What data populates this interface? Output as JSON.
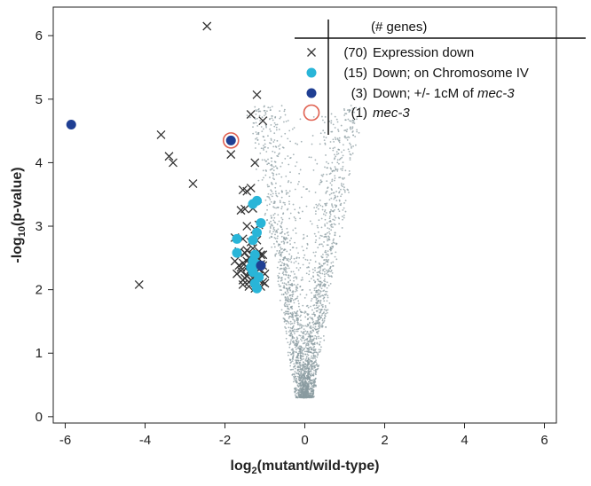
{
  "chart_data": {
    "type": "scatter",
    "xlabel": {
      "pre": "log",
      "sub": "2",
      "post": "(mutant/wild-type)"
    },
    "ylabel": {
      "pre": "-log",
      "sub": "10",
      "post": "(p-value)"
    },
    "xlim": [
      -6.3,
      6.3
    ],
    "ylim": [
      -0.1,
      6.45
    ],
    "xticks": [
      -6,
      -4,
      -2,
      0,
      2,
      4,
      6
    ],
    "yticks": [
      0,
      1,
      2,
      3,
      4,
      5,
      6
    ],
    "xtick_labels": [
      "-6",
      "-4",
      "-2",
      "0",
      "2",
      "4",
      "6"
    ],
    "ytick_labels": [
      "0",
      "1",
      "2",
      "3",
      "4",
      "5",
      "6"
    ],
    "legend_header": "(# genes)",
    "legend": [
      {
        "marker": "x",
        "count": "(70)",
        "label": "Expression down",
        "label_italic": "",
        "color": "#333333"
      },
      {
        "marker": "filled-circle",
        "count": "(15)",
        "label": "Down; on Chromosome IV",
        "label_italic": "",
        "color": "#29b5d8"
      },
      {
        "marker": "filled-circle",
        "count": "(3)",
        "label": "Down; +/- 1cM of ",
        "label_italic": "mec-3",
        "color": "#1f3f93"
      },
      {
        "marker": "open-circle",
        "count": "(1)",
        "label": "",
        "label_italic": "mec-3",
        "color": "#e06050"
      }
    ],
    "background_color": "#8a9ba0",
    "series": [
      {
        "marker": "x",
        "color": "#333333",
        "points": [
          [
            -2.45,
            6.15
          ],
          [
            -1.2,
            5.07
          ],
          [
            -1.05,
            4.66
          ],
          [
            -1.35,
            4.76
          ],
          [
            -3.6,
            4.44
          ],
          [
            -3.4,
            4.1
          ],
          [
            -3.3,
            4.0
          ],
          [
            -1.85,
            4.13
          ],
          [
            -1.25,
            4.0
          ],
          [
            -2.8,
            3.67
          ],
          [
            -4.15,
            2.08
          ],
          [
            -1.55,
            3.57
          ],
          [
            -1.35,
            3.6
          ],
          [
            -1.45,
            3.55
          ],
          [
            -1.6,
            3.25
          ],
          [
            -1.5,
            3.27
          ],
          [
            -1.3,
            3.28
          ],
          [
            -1.45,
            3.0
          ],
          [
            -1.25,
            2.95
          ],
          [
            -1.15,
            3.02
          ],
          [
            -1.75,
            2.82
          ],
          [
            -1.55,
            2.8
          ],
          [
            -1.35,
            2.75
          ],
          [
            -1.2,
            2.78
          ],
          [
            -1.65,
            2.6
          ],
          [
            -1.45,
            2.62
          ],
          [
            -1.3,
            2.55
          ],
          [
            -1.15,
            2.6
          ],
          [
            -1.05,
            2.55
          ],
          [
            -1.75,
            2.45
          ],
          [
            -1.55,
            2.42
          ],
          [
            -1.4,
            2.5
          ],
          [
            -1.2,
            2.45
          ],
          [
            -1.1,
            2.4
          ],
          [
            -1.6,
            2.3
          ],
          [
            -1.45,
            2.35
          ],
          [
            -1.3,
            2.28
          ],
          [
            -1.15,
            2.32
          ],
          [
            -1.0,
            2.25
          ],
          [
            -1.5,
            2.18
          ],
          [
            -1.35,
            2.15
          ],
          [
            -1.2,
            2.2
          ],
          [
            -1.05,
            2.12
          ],
          [
            -1.55,
            2.08
          ],
          [
            -1.4,
            2.05
          ],
          [
            -1.25,
            2.1
          ],
          [
            -1.1,
            2.05
          ],
          [
            -1.6,
            2.35
          ],
          [
            -1.3,
            2.38
          ],
          [
            -1.15,
            2.15
          ],
          [
            -1.45,
            2.22
          ],
          [
            -1.25,
            2.48
          ],
          [
            -1.0,
            2.1
          ],
          [
            -1.2,
            2.52
          ],
          [
            -1.35,
            2.42
          ],
          [
            -1.5,
            2.58
          ],
          [
            -1.65,
            2.38
          ],
          [
            -1.7,
            2.25
          ],
          [
            -1.1,
            2.55
          ],
          [
            -1.3,
            2.65
          ],
          [
            -1.4,
            2.12
          ],
          [
            -1.55,
            2.15
          ],
          [
            -1.25,
            2.02
          ],
          [
            -1.05,
            2.38
          ],
          [
            -1.35,
            2.32
          ],
          [
            -1.2,
            2.28
          ],
          [
            -1.45,
            2.45
          ],
          [
            -1.15,
            2.48
          ],
          [
            -1.4,
            2.28
          ],
          [
            -1.3,
            2.18
          ]
        ]
      },
      {
        "marker": "filled-circle",
        "color": "#29b5d8",
        "points": [
          [
            -1.3,
            3.35
          ],
          [
            -1.2,
            3.4
          ],
          [
            -1.1,
            3.05
          ],
          [
            -1.7,
            2.8
          ],
          [
            -1.3,
            2.78
          ],
          [
            -1.2,
            2.9
          ],
          [
            -1.7,
            2.58
          ],
          [
            -1.3,
            2.45
          ],
          [
            -1.2,
            2.4
          ],
          [
            -1.3,
            2.28
          ],
          [
            -1.15,
            2.2
          ],
          [
            -1.25,
            2.1
          ],
          [
            -1.2,
            2.02
          ],
          [
            -1.35,
            2.35
          ],
          [
            -1.25,
            2.55
          ]
        ]
      },
      {
        "marker": "filled-circle",
        "color": "#1f3f93",
        "points": [
          [
            -5.85,
            4.6
          ],
          [
            -1.85,
            4.35
          ],
          [
            -1.1,
            2.38
          ]
        ]
      },
      {
        "marker": "open-circle",
        "color": "#e06050",
        "points": [
          [
            -1.85,
            4.35
          ]
        ]
      }
    ]
  }
}
